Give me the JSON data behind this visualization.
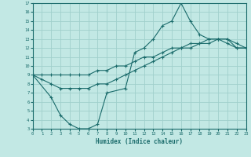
{
  "xlabel": "Humidex (Indice chaleur)",
  "bg_color": "#c2e8e4",
  "grid_color": "#a0d0cc",
  "line_color": "#1a6b6b",
  "xlim": [
    0,
    23
  ],
  "ylim": [
    3,
    17
  ],
  "xticks": [
    0,
    1,
    2,
    3,
    4,
    5,
    6,
    7,
    8,
    9,
    10,
    11,
    12,
    13,
    14,
    15,
    16,
    17,
    18,
    19,
    20,
    21,
    22,
    23
  ],
  "yticks": [
    3,
    4,
    5,
    6,
    7,
    8,
    9,
    10,
    11,
    12,
    13,
    14,
    15,
    16,
    17
  ],
  "line1_x": [
    0,
    1,
    2,
    3,
    4,
    5,
    6,
    7,
    8,
    9,
    10,
    11,
    12,
    13,
    14,
    15,
    16,
    17,
    18,
    19,
    20,
    21,
    22,
    23
  ],
  "line1_y": [
    9,
    9,
    9,
    9,
    9,
    9,
    9,
    9.5,
    9.5,
    10,
    10,
    10.5,
    11,
    11,
    11.5,
    12,
    12,
    12.5,
    12.5,
    13,
    13,
    13,
    12,
    12
  ],
  "line2_x": [
    0,
    1,
    2,
    3,
    4,
    5,
    6,
    7,
    8,
    9,
    10,
    11,
    12,
    13,
    14,
    15,
    16,
    17,
    18,
    19,
    20,
    21,
    22,
    23
  ],
  "line2_y": [
    9,
    8.5,
    8,
    7.5,
    7.5,
    7.5,
    7.5,
    8,
    8,
    8.5,
    9,
    9.5,
    10,
    10.5,
    11,
    11.5,
    12,
    12,
    12.5,
    12.5,
    13,
    13,
    12.5,
    12
  ],
  "line3_x": [
    0,
    2,
    3,
    4,
    5,
    6,
    7,
    8,
    10,
    11,
    12,
    13,
    14,
    15,
    16,
    17,
    18,
    19,
    20,
    21,
    22,
    23
  ],
  "line3_y": [
    9,
    6.5,
    4.5,
    3.5,
    3,
    3,
    3.5,
    7,
    7.5,
    11.5,
    12,
    13,
    14.5,
    15,
    17,
    15,
    13.5,
    13,
    13,
    12.5,
    12,
    12
  ]
}
